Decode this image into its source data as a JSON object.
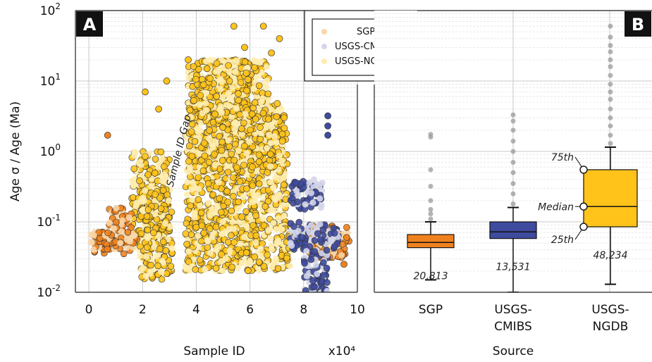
{
  "colors": {
    "sgp": "#F0821E",
    "cmibs": "#3F4B9E",
    "ngdb": "#FFC31A",
    "sgp_light": "#FAD7A8",
    "cmibs_light": "#D4D6EA",
    "ngdb_light": "#FFEDB0",
    "outlier": "#9a9a9a"
  },
  "y_axis": {
    "label": "Age σ / Age (Ma)",
    "ticks": [
      {
        "value": 0.01,
        "base": "10",
        "exp": "-2"
      },
      {
        "value": 0.1,
        "base": "10",
        "exp": "-1"
      },
      {
        "value": 1,
        "base": "10",
        "exp": "0"
      },
      {
        "value": 10,
        "base": "10",
        "exp": "1"
      },
      {
        "value": 100,
        "base": "10",
        "exp": "2"
      }
    ],
    "scale": "log",
    "range": [
      0.01,
      100
    ]
  },
  "chart_data": [
    {
      "panel": "A",
      "type": "scatter",
      "xlabel": "Sample ID",
      "x_multiplier": "x10⁴",
      "ylabel": "Age σ / Age (Ma)",
      "xlim": [
        -0.5,
        10
      ],
      "ylim": [
        0.01,
        100
      ],
      "yscale": "log",
      "grid": true,
      "x_ticks": [
        "0",
        "2",
        "4",
        "6",
        "8",
        "10"
      ],
      "legend": {
        "placement": "top-right",
        "entries": [
          "SGP",
          "USGS-CMIBS",
          "USGS-NGDB"
        ]
      },
      "annotation": "Sample ID Gap",
      "series": [
        {
          "name": "USGS-NGDB",
          "clusters": [
            {
              "x": [
                1.6,
                3.0
              ],
              "y": [
                0.04,
                1.0
              ]
            },
            {
              "x": [
                1.9,
                3.1
              ],
              "y": [
                0.015,
                0.3
              ]
            },
            {
              "x": [
                3.6,
                7.4
              ],
              "y": [
                0.08,
                2.0
              ]
            },
            {
              "x": [
                3.6,
                7.5
              ],
              "y": [
                0.02,
                0.09
              ]
            },
            {
              "x": [
                3.7,
                7.3
              ],
              "y": [
                0.5,
                5.0
              ]
            },
            {
              "x": [
                4.6,
                6.7
              ],
              "y": [
                2.0,
                20.0
              ]
            },
            {
              "x": [
                3.7,
                6.0
              ],
              "y": [
                3.0,
                20.0
              ]
            }
          ],
          "outliers": [
            [
              5.4,
              60
            ],
            [
              6.5,
              60
            ],
            [
              3.7,
              20
            ],
            [
              4.4,
              15
            ],
            [
              5.8,
              30
            ],
            [
              6.8,
              25
            ],
            [
              7.1,
              40
            ],
            [
              2.9,
              10
            ],
            [
              2.1,
              7
            ],
            [
              2.6,
              4
            ]
          ]
        },
        {
          "name": "SGP",
          "clusters": [
            {
              "x": [
                0.0,
                1.8
              ],
              "y": [
                0.035,
                0.075
              ]
            },
            {
              "x": [
                0.7,
                1.6
              ],
              "y": [
                0.05,
                0.16
              ]
            },
            {
              "x": [
                8.2,
                9.7
              ],
              "y": [
                0.03,
                0.09
              ]
            }
          ],
          "outliers": [
            [
              0.7,
              1.7
            ],
            [
              9.6,
              0.06
            ],
            [
              9.5,
              0.025
            ]
          ]
        },
        {
          "name": "USGS-CMIBS",
          "clusters": [
            {
              "x": [
                7.5,
                9.3
              ],
              "y": [
                0.04,
                0.1
              ]
            },
            {
              "x": [
                7.5,
                8.7
              ],
              "y": [
                0.15,
                0.4
              ]
            },
            {
              "x": [
                8.0,
                8.9
              ],
              "y": [
                0.01,
                0.04
              ]
            }
          ],
          "outliers": [
            [
              8.9,
              3.2
            ],
            [
              8.9,
              2.3
            ],
            [
              8.9,
              1.7
            ],
            [
              8.4,
              0.012
            ]
          ]
        }
      ]
    },
    {
      "panel": "B",
      "type": "box",
      "xlabel": "Source",
      "ylim": [
        0.01,
        100
      ],
      "yscale": "log",
      "categories": [
        "SGP",
        "USGS-\nCMIBS",
        "USGS-\nNGDB"
      ],
      "boxes": [
        {
          "name": "SGP",
          "count": "20,813",
          "whisker_low": 0.015,
          "q1": 0.043,
          "median": 0.051,
          "q3": 0.066,
          "whisker_high": 0.1,
          "outliers": [
            0.11,
            0.13,
            0.15,
            0.2,
            0.32,
            0.55,
            1.6,
            1.75
          ]
        },
        {
          "name": "USGS-CMIBS",
          "count": "13,531",
          "whisker_low": 0.01,
          "q1": 0.058,
          "median": 0.072,
          "q3": 0.1,
          "whisker_high": 0.16,
          "outliers": [
            0.18,
            0.25,
            0.35,
            0.5,
            0.7,
            1.0,
            1.4,
            2.0,
            2.7,
            3.3
          ]
        },
        {
          "name": "USGS-NGDB",
          "count": "48,234",
          "whisker_low": 0.013,
          "q1": 0.085,
          "median": 0.165,
          "q3": 0.55,
          "whisker_high": 1.15,
          "outliers": [
            1.3,
            1.7,
            2.3,
            3.0,
            4.0,
            5.5,
            7.0,
            9.0,
            12,
            16,
            20,
            26,
            32,
            42,
            60
          ]
        }
      ],
      "annotations": {
        "q3": "75th",
        "median": "Median",
        "q1": "25th"
      }
    }
  ],
  "panels": {
    "a_badge": "A",
    "b_badge": "B"
  },
  "legend_labels": {
    "sgp": "SGP",
    "cmibs": "USGS-CMIBS",
    "ngdb": "USGS-NGDB"
  },
  "x_multiplier_label": "x10⁴",
  "panel_a_xlabel": "Sample ID",
  "panel_b_xlabel": "Source",
  "gap_label": "Sample ID Gap",
  "box_annotations": {
    "q3": "75th",
    "median": "Median",
    "q1": "25th"
  }
}
